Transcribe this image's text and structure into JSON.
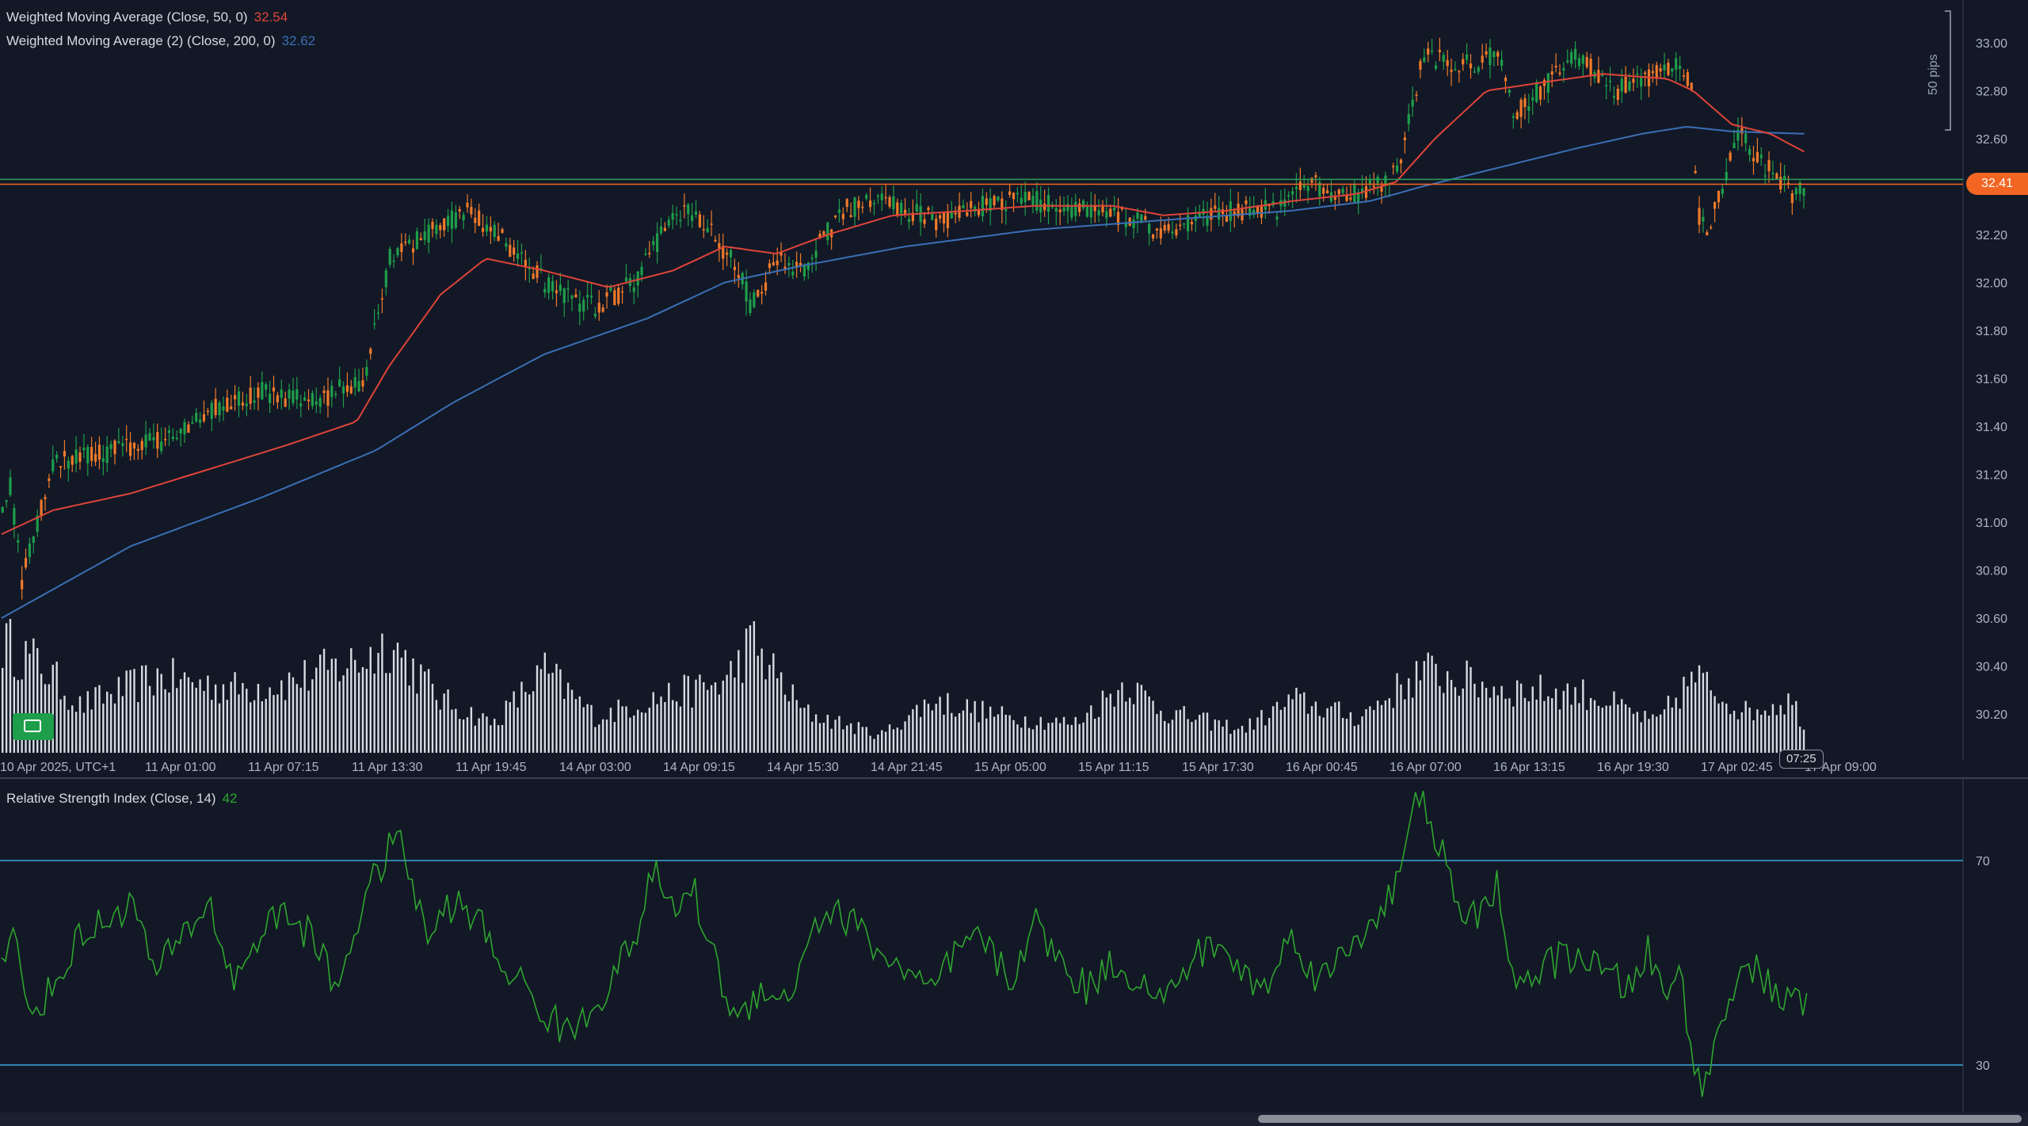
{
  "legends": {
    "wma50_label": "Weighted Moving Average (Close, 50, 0)",
    "wma50_value": "32.54",
    "wma200_label": "Weighted Moving Average (2) (Close, 200, 0)",
    "wma200_value": "32.62",
    "rsi_label": "Relative Strength Index (Close, 14)",
    "rsi_value": "42"
  },
  "current_price_tag": "32.41",
  "current_time_tag": "07:25",
  "ruler_label": "50 pips",
  "colors": {
    "background": "#121826",
    "up": "#1e9e4a",
    "down": "#f07a2a",
    "wma50": "#e0443a",
    "wma200": "#3b6fb5",
    "rsi_line": "#2fa52f",
    "rsi_levels": "#3aa8d8",
    "price_tag": "#f26522",
    "volume": "#d7dbe2"
  },
  "chart_data": [
    {
      "type": "candlestick",
      "title": "",
      "ylim": [
        30.1,
        33.1
      ],
      "y_ticks": [
        "33.00",
        "32.80",
        "32.60",
        "32.40",
        "32.20",
        "32.00",
        "31.80",
        "31.60",
        "31.40",
        "31.20",
        "31.00",
        "30.80",
        "30.60",
        "30.40",
        "30.20"
      ],
      "x_ticks": [
        "10 Apr 2025, UTC+1",
        "11 Apr 01:00",
        "11 Apr 07:15",
        "11 Apr 13:30",
        "11 Apr 19:45",
        "14 Apr 03:00",
        "14 Apr 09:15",
        "14 Apr 15:30",
        "14 Apr 21:45",
        "15 Apr 05:00",
        "15 Apr 11:15",
        "15 Apr 17:30",
        "16 Apr 00:45",
        "16 Apr 07:00",
        "16 Apr 13:15",
        "16 Apr 19:30",
        "17 Apr 02:45",
        "17 Apr 09:00"
      ],
      "price_anchors": [
        [
          0,
          31.05
        ],
        [
          6,
          31.15
        ],
        [
          15,
          30.75
        ],
        [
          40,
          31.25
        ],
        [
          90,
          31.3
        ],
        [
          130,
          31.35
        ],
        [
          155,
          31.45
        ],
        [
          200,
          31.55
        ],
        [
          240,
          31.5
        ],
        [
          280,
          31.6
        ],
        [
          300,
          32.1
        ],
        [
          330,
          32.2
        ],
        [
          360,
          32.3
        ],
        [
          385,
          32.2
        ],
        [
          400,
          32.1
        ],
        [
          430,
          31.95
        ],
        [
          460,
          31.9
        ],
        [
          490,
          32.0
        ],
        [
          510,
          32.2
        ],
        [
          530,
          32.3
        ],
        [
          550,
          32.2
        ],
        [
          570,
          32.05
        ],
        [
          580,
          31.9
        ],
        [
          600,
          32.1
        ],
        [
          620,
          32.05
        ],
        [
          650,
          32.3
        ],
        [
          680,
          32.35
        ],
        [
          700,
          32.3
        ],
        [
          730,
          32.25
        ],
        [
          760,
          32.32
        ],
        [
          790,
          32.35
        ],
        [
          820,
          32.32
        ],
        [
          850,
          32.3
        ],
        [
          880,
          32.25
        ],
        [
          900,
          32.2
        ],
        [
          930,
          32.28
        ],
        [
          960,
          32.3
        ],
        [
          990,
          32.3
        ],
        [
          1010,
          32.42
        ],
        [
          1040,
          32.35
        ],
        [
          1080,
          32.45
        ],
        [
          1090,
          32.7
        ],
        [
          1100,
          32.95
        ],
        [
          1130,
          32.9
        ],
        [
          1160,
          32.95
        ],
        [
          1170,
          32.7
        ],
        [
          1190,
          32.8
        ],
        [
          1220,
          32.95
        ],
        [
          1250,
          32.8
        ],
        [
          1270,
          32.85
        ],
        [
          1300,
          32.9
        ],
        [
          1308,
          32.8
        ],
        [
          1312,
          32.3
        ],
        [
          1320,
          32.2
        ],
        [
          1335,
          32.45
        ],
        [
          1345,
          32.65
        ],
        [
          1360,
          32.5
        ],
        [
          1375,
          32.45
        ],
        [
          1386,
          32.35
        ],
        [
          1398,
          32.42
        ]
      ],
      "wma50_anchors": [
        [
          0,
          30.95
        ],
        [
          40,
          31.05
        ],
        [
          100,
          31.12
        ],
        [
          160,
          31.22
        ],
        [
          220,
          31.32
        ],
        [
          275,
          31.42
        ],
        [
          300,
          31.65
        ],
        [
          340,
          31.95
        ],
        [
          375,
          32.1
        ],
        [
          420,
          32.05
        ],
        [
          470,
          31.98
        ],
        [
          520,
          32.05
        ],
        [
          560,
          32.15
        ],
        [
          600,
          32.12
        ],
        [
          640,
          32.2
        ],
        [
          690,
          32.28
        ],
        [
          750,
          32.3
        ],
        [
          800,
          32.32
        ],
        [
          860,
          32.32
        ],
        [
          900,
          32.28
        ],
        [
          950,
          32.3
        ],
        [
          1000,
          32.34
        ],
        [
          1050,
          32.37
        ],
        [
          1080,
          32.42
        ],
        [
          1110,
          32.6
        ],
        [
          1150,
          32.8
        ],
        [
          1200,
          32.84
        ],
        [
          1240,
          32.87
        ],
        [
          1290,
          32.85
        ],
        [
          1310,
          32.8
        ],
        [
          1340,
          32.66
        ],
        [
          1370,
          32.62
        ],
        [
          1398,
          32.54
        ]
      ],
      "wma200_anchors": [
        [
          0,
          30.6
        ],
        [
          100,
          30.9
        ],
        [
          200,
          31.1
        ],
        [
          290,
          31.3
        ],
        [
          350,
          31.5
        ],
        [
          420,
          31.7
        ],
        [
          500,
          31.85
        ],
        [
          560,
          32.0
        ],
        [
          620,
          32.07
        ],
        [
          700,
          32.15
        ],
        [
          800,
          32.22
        ],
        [
          900,
          32.26
        ],
        [
          1000,
          32.3
        ],
        [
          1060,
          32.34
        ],
        [
          1100,
          32.4
        ],
        [
          1160,
          32.48
        ],
        [
          1220,
          32.56
        ],
        [
          1270,
          32.62
        ],
        [
          1305,
          32.65
        ],
        [
          1340,
          32.63
        ],
        [
          1398,
          32.62
        ]
      ],
      "current_price": 32.41,
      "horizontal_lines": [
        32.41,
        32.43
      ]
    },
    {
      "type": "bar",
      "title": "Volume",
      "note": "volume histogram below price panel, no numeric axis printed"
    },
    {
      "type": "line",
      "title": "Relative Strength Index (Close, 14)",
      "ylim": [
        20,
        90
      ],
      "levels": [
        70,
        30
      ],
      "y_ticks": [
        "70",
        "30"
      ],
      "rsi_anchors": [
        [
          0,
          52
        ],
        [
          10,
          55
        ],
        [
          20,
          40
        ],
        [
          40,
          45
        ],
        [
          60,
          55
        ],
        [
          80,
          58
        ],
        [
          100,
          62
        ],
        [
          120,
          48
        ],
        [
          140,
          55
        ],
        [
          160,
          62
        ],
        [
          180,
          46
        ],
        [
          200,
          56
        ],
        [
          220,
          60
        ],
        [
          240,
          55
        ],
        [
          260,
          45
        ],
        [
          280,
          62
        ],
        [
          300,
          72
        ],
        [
          310,
          74
        ],
        [
          320,
          63
        ],
        [
          330,
          55
        ],
        [
          350,
          62
        ],
        [
          370,
          58
        ],
        [
          385,
          50
        ],
        [
          400,
          47
        ],
        [
          420,
          40
        ],
        [
          440,
          36
        ],
        [
          460,
          42
        ],
        [
          480,
          50
        ],
        [
          495,
          58
        ],
        [
          505,
          68
        ],
        [
          520,
          60
        ],
        [
          535,
          65
        ],
        [
          550,
          52
        ],
        [
          570,
          38
        ],
        [
          590,
          46
        ],
        [
          610,
          42
        ],
        [
          625,
          56
        ],
        [
          640,
          60
        ],
        [
          660,
          58
        ],
        [
          680,
          52
        ],
        [
          700,
          48
        ],
        [
          720,
          44
        ],
        [
          740,
          52
        ],
        [
          760,
          55
        ],
        [
          780,
          46
        ],
        [
          800,
          58
        ],
        [
          820,
          50
        ],
        [
          840,
          45
        ],
        [
          860,
          50
        ],
        [
          880,
          47
        ],
        [
          900,
          42
        ],
        [
          920,
          50
        ],
        [
          940,
          54
        ],
        [
          960,
          48
        ],
        [
          980,
          45
        ],
        [
          1000,
          56
        ],
        [
          1020,
          46
        ],
        [
          1040,
          52
        ],
        [
          1060,
          58
        ],
        [
          1080,
          65
        ],
        [
          1095,
          80
        ],
        [
          1100,
          86
        ],
        [
          1110,
          70
        ],
        [
          1120,
          72
        ],
        [
          1130,
          56
        ],
        [
          1150,
          62
        ],
        [
          1158,
          66
        ],
        [
          1165,
          50
        ],
        [
          1180,
          46
        ],
        [
          1200,
          50
        ],
        [
          1220,
          52
        ],
        [
          1240,
          48
        ],
        [
          1260,
          45
        ],
        [
          1275,
          52
        ],
        [
          1290,
          42
        ],
        [
          1300,
          50
        ],
        [
          1305,
          40
        ],
        [
          1310,
          30
        ],
        [
          1316,
          25
        ],
        [
          1325,
          32
        ],
        [
          1335,
          40
        ],
        [
          1345,
          50
        ],
        [
          1360,
          48
        ],
        [
          1370,
          45
        ],
        [
          1385,
          42
        ],
        [
          1398,
          42
        ]
      ]
    }
  ]
}
